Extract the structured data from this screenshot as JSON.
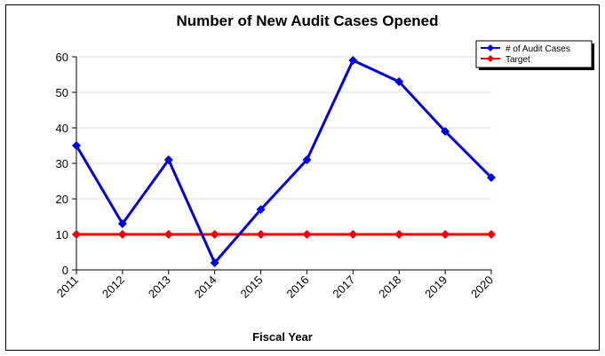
{
  "chart_data": {
    "type": "line",
    "title": "Number of New Audit Cases Opened",
    "xlabel": "Fiscal Year",
    "ylabel": "",
    "categories": [
      "2011",
      "2012",
      "2013",
      "2014",
      "2015",
      "2016",
      "2017",
      "2018",
      "2019",
      "2020"
    ],
    "ylim": [
      0,
      60
    ],
    "yticks": [
      0,
      10,
      20,
      30,
      40,
      50,
      60
    ],
    "grid": "horizontal",
    "legend_position": "top-right",
    "series": [
      {
        "name": "# of Audit Cases",
        "color": "#0000dd",
        "values": [
          35,
          13,
          31,
          2,
          17,
          31,
          59,
          53,
          39,
          26
        ]
      },
      {
        "name": "Target",
        "color": "#ee0000",
        "values": [
          10,
          10,
          10,
          10,
          10,
          10,
          10,
          10,
          10,
          10
        ]
      }
    ]
  }
}
